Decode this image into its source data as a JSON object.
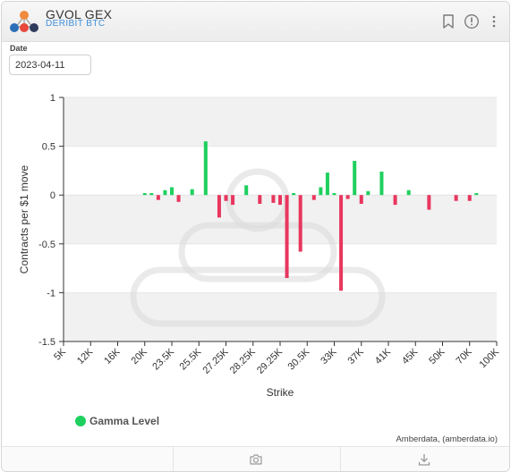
{
  "header": {
    "title": "GVOL GEX",
    "subtitle": "DERIBIT BTC",
    "icons": [
      "bookmark-icon",
      "info-icon",
      "more-vertical-icon"
    ]
  },
  "controls": {
    "date_label": "Date",
    "date_value": "2023-04-11"
  },
  "chart_data": {
    "type": "bar",
    "xlabel": "Strike",
    "ylabel": "Contracts per $1 move",
    "ylim": [
      -1.5,
      1
    ],
    "y_ticks": [
      "1",
      "0.5",
      "0",
      "-0.5",
      "-1",
      "-1.5"
    ],
    "x_tick_labels": [
      "5K",
      "12K",
      "16K",
      "20K",
      "23.5K",
      "25.5K",
      "27.25K",
      "28.25K",
      "29.25K",
      "30.5K",
      "33K",
      "37K",
      "41K",
      "45K",
      "50K",
      "70K",
      "100K"
    ],
    "grid": true,
    "legend_position": "bottom-left",
    "positive_color": "#1fd05e",
    "negative_color": "#e8365d",
    "series": [
      {
        "name": "Gamma Level",
        "points": [
          {
            "x": 3.0,
            "y": 0.02
          },
          {
            "x": 3.25,
            "y": 0.02
          },
          {
            "x": 3.5,
            "y": -0.05
          },
          {
            "x": 3.75,
            "y": 0.05
          },
          {
            "x": 4.0,
            "y": 0.08
          },
          {
            "x": 4.25,
            "y": -0.07
          },
          {
            "x": 4.75,
            "y": 0.06
          },
          {
            "x": 5.25,
            "y": 0.55
          },
          {
            "x": 5.75,
            "y": -0.23
          },
          {
            "x": 6.0,
            "y": -0.06
          },
          {
            "x": 6.25,
            "y": -0.1
          },
          {
            "x": 6.75,
            "y": 0.1
          },
          {
            "x": 7.25,
            "y": -0.09
          },
          {
            "x": 7.75,
            "y": -0.08
          },
          {
            "x": 8.0,
            "y": -0.1
          },
          {
            "x": 8.25,
            "y": -0.85
          },
          {
            "x": 8.5,
            "y": 0.02
          },
          {
            "x": 8.75,
            "y": -0.58
          },
          {
            "x": 9.25,
            "y": -0.05
          },
          {
            "x": 9.5,
            "y": 0.08
          },
          {
            "x": 9.75,
            "y": 0.23
          },
          {
            "x": 10.0,
            "y": 0.02
          },
          {
            "x": 10.25,
            "y": -0.98
          },
          {
            "x": 10.5,
            "y": -0.04
          },
          {
            "x": 10.75,
            "y": 0.35
          },
          {
            "x": 11.0,
            "y": -0.09
          },
          {
            "x": 11.25,
            "y": 0.04
          },
          {
            "x": 11.75,
            "y": 0.24
          },
          {
            "x": 12.25,
            "y": -0.1
          },
          {
            "x": 12.75,
            "y": 0.05
          },
          {
            "x": 13.5,
            "y": -0.15
          },
          {
            "x": 14.5,
            "y": -0.06
          },
          {
            "x": 15.0,
            "y": -0.06
          },
          {
            "x": 15.25,
            "y": 0.02
          }
        ]
      }
    ]
  },
  "attribution": "Amberdata, (amberdata.io)",
  "footer": {
    "icons": [
      "camera-icon",
      "download-icon"
    ]
  }
}
